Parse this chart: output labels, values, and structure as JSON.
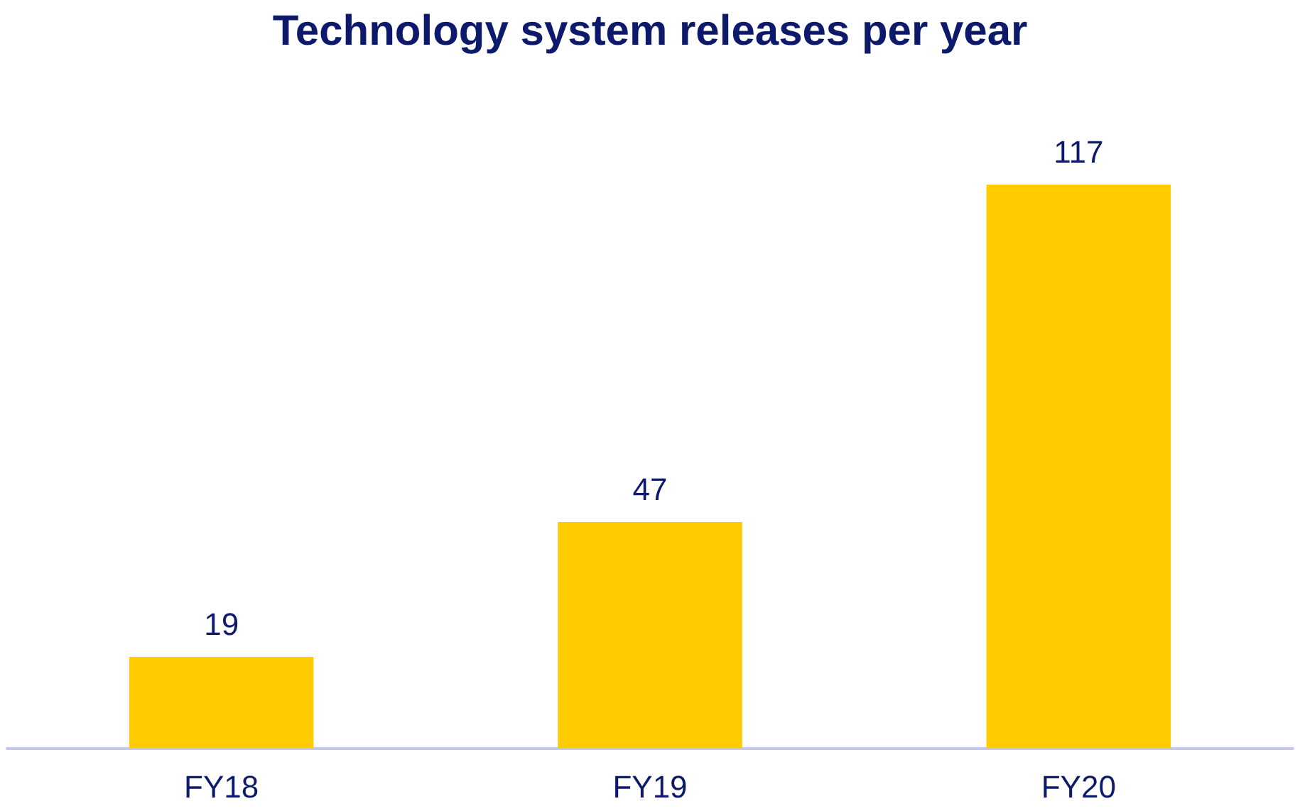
{
  "chart_data": {
    "type": "bar",
    "title": "Technology system releases per year",
    "categories": [
      "FY18",
      "FY19",
      "FY20"
    ],
    "values": [
      19,
      47,
      117
    ],
    "color": "#ffcc00",
    "data_labels": true
  }
}
